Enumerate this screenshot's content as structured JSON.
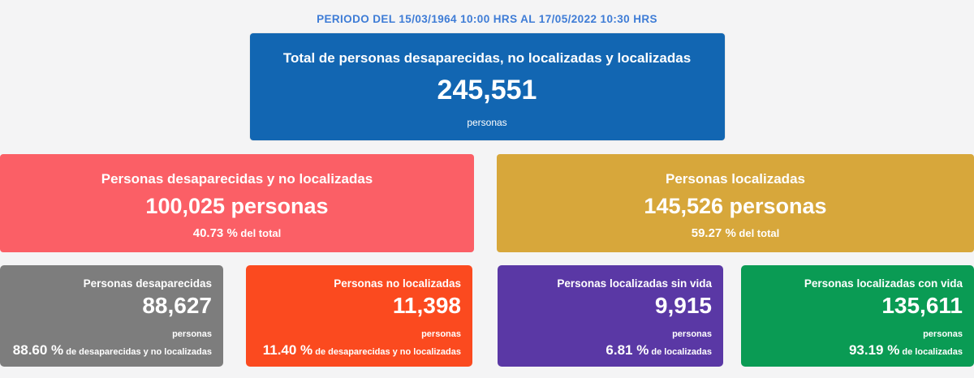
{
  "page": {
    "background_color": "#f4f4f5"
  },
  "header": {
    "period_label": "PERIODO DEL 15/03/1964 10:00 HRS AL 17/05/2022 10:30 HRS",
    "text_color": "#3e7cd6"
  },
  "total_card": {
    "title": "Total de personas desaparecidas, no localizadas y localizadas",
    "value": "245,551",
    "unit": "personas",
    "color": "#1266b2"
  },
  "summary_cards": [
    {
      "title": "Personas desaparecidas y no localizadas",
      "value": "100,025 personas",
      "percent": "40.73 %",
      "percent_suffix": "del total",
      "color": "#fb5f66"
    },
    {
      "title": "Personas localizadas",
      "value": "145,526 personas",
      "percent": "59.27 %",
      "percent_suffix": "del total",
      "color": "#d7a73b"
    }
  ],
  "detail_cards": [
    {
      "title": "Personas desaparecidas",
      "value": "88,627",
      "unit": "personas",
      "percent": "88.60 %",
      "percent_suffix": "de desaparecidas y no localizadas",
      "color": "#7d7d7d"
    },
    {
      "title": "Personas no localizadas",
      "value": "11,398",
      "unit": "personas",
      "percent": "11.40 %",
      "percent_suffix": "de desaparecidas y no localizadas",
      "color": "#fb4a1f"
    },
    {
      "title": "Personas localizadas sin vida",
      "value": "9,915",
      "unit": "personas",
      "percent": "6.81 %",
      "percent_suffix": "de localizadas",
      "color": "#5a38a5"
    },
    {
      "title": "Personas localizadas con vida",
      "value": "135,611",
      "unit": "personas",
      "percent": "93.19 %",
      "percent_suffix": "de localizadas",
      "color": "#0a9b54"
    }
  ]
}
